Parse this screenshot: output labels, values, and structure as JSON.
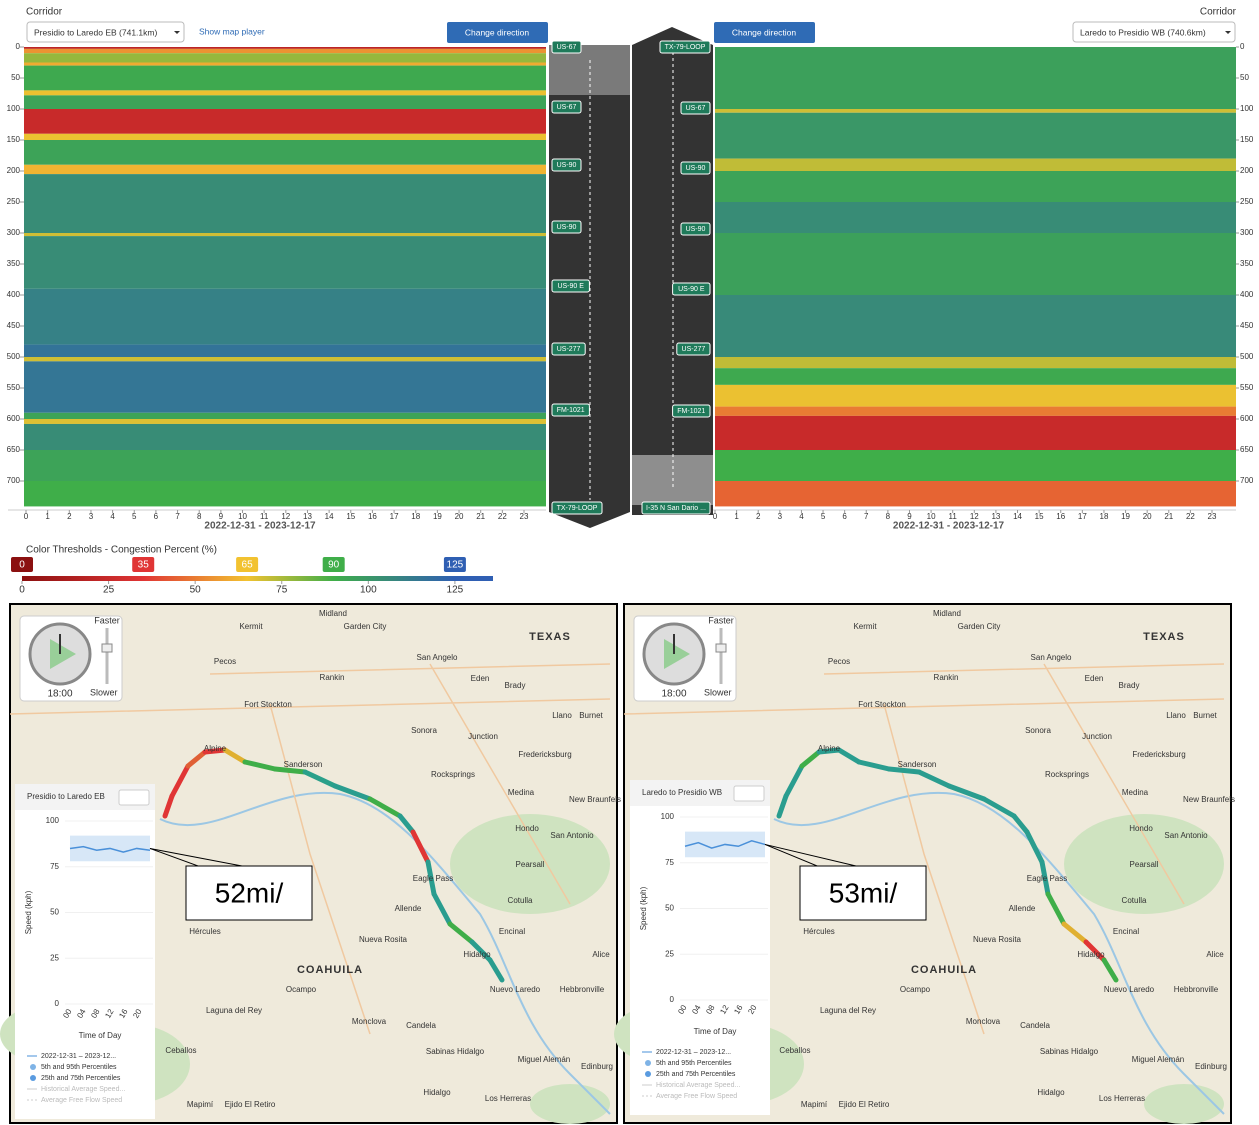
{
  "corridor_label": "Corridor",
  "heatmaps": [
    {
      "select": "Presidio to Laredo EB (741.1km)",
      "map_player": "Show map player",
      "change": "Change direction",
      "date_range": "2022-12-31 - 2023-12-17",
      "yticks": [
        0,
        50,
        100,
        150,
        200,
        250,
        300,
        350,
        400,
        450,
        500,
        550,
        600,
        650,
        700
      ],
      "xticks": [
        0,
        1,
        2,
        3,
        4,
        5,
        6,
        7,
        8,
        9,
        10,
        11,
        12,
        13,
        14,
        15,
        16,
        17,
        18,
        19,
        20,
        21,
        22,
        23
      ],
      "bands": [
        {
          "from": 0,
          "to": 3,
          "pct": 20
        },
        {
          "from": 3,
          "to": 10,
          "pct": 55
        },
        {
          "from": 10,
          "to": 25,
          "pct": 78
        },
        {
          "from": 25,
          "to": 30,
          "pct": 60
        },
        {
          "from": 30,
          "to": 70,
          "pct": 92
        },
        {
          "from": 70,
          "to": 78,
          "pct": 66
        },
        {
          "from": 78,
          "to": 100,
          "pct": 95
        },
        {
          "from": 100,
          "to": 140,
          "pct": 25
        },
        {
          "from": 140,
          "to": 150,
          "pct": 66
        },
        {
          "from": 150,
          "to": 190,
          "pct": 95
        },
        {
          "from": 190,
          "to": 205,
          "pct": 62
        },
        {
          "from": 205,
          "to": 300,
          "pct": 105
        },
        {
          "from": 300,
          "to": 305,
          "pct": 70
        },
        {
          "from": 305,
          "to": 390,
          "pct": 105
        },
        {
          "from": 390,
          "to": 480,
          "pct": 110
        },
        {
          "from": 480,
          "to": 500,
          "pct": 116
        },
        {
          "from": 500,
          "to": 507,
          "pct": 70
        },
        {
          "from": 507,
          "to": 590,
          "pct": 115
        },
        {
          "from": 590,
          "to": 600,
          "pct": 95
        },
        {
          "from": 600,
          "to": 608,
          "pct": 68
        },
        {
          "from": 608,
          "to": 650,
          "pct": 105
        },
        {
          "from": 650,
          "to": 700,
          "pct": 95
        },
        {
          "from": 700,
          "to": 741,
          "pct": 90
        }
      ]
    },
    {
      "select": "Laredo to Presidio WB (740.6km)",
      "change": "Change direction",
      "date_range": "2022-12-31 - 2023-12-17",
      "yticks": [
        0,
        50,
        100,
        150,
        200,
        250,
        300,
        350,
        400,
        450,
        500,
        550,
        600,
        650,
        700
      ],
      "xticks": [
        0,
        1,
        2,
        3,
        4,
        5,
        6,
        7,
        8,
        9,
        10,
        11,
        12,
        13,
        14,
        15,
        16,
        17,
        18,
        19,
        20,
        21,
        22,
        23
      ],
      "bands": [
        {
          "from": 0,
          "to": 100,
          "pct": 96
        },
        {
          "from": 100,
          "to": 106,
          "pct": 70
        },
        {
          "from": 106,
          "to": 180,
          "pct": 100
        },
        {
          "from": 180,
          "to": 200,
          "pct": 72
        },
        {
          "from": 200,
          "to": 250,
          "pct": 95
        },
        {
          "from": 250,
          "to": 300,
          "pct": 105
        },
        {
          "from": 300,
          "to": 400,
          "pct": 96
        },
        {
          "from": 400,
          "to": 500,
          "pct": 106
        },
        {
          "from": 500,
          "to": 518,
          "pct": 72
        },
        {
          "from": 518,
          "to": 545,
          "pct": 92
        },
        {
          "from": 545,
          "to": 580,
          "pct": 66
        },
        {
          "from": 580,
          "to": 595,
          "pct": 50
        },
        {
          "from": 595,
          "to": 650,
          "pct": 25
        },
        {
          "from": 650,
          "to": 700,
          "pct": 90
        },
        {
          "from": 700,
          "to": 741,
          "pct": 45
        }
      ]
    }
  ],
  "road": {
    "left_markers": [
      "US-67",
      "US-67",
      "US-90",
      "US-90",
      "US-90 E",
      "US-277",
      "FM-1021",
      "TX-79-LOOP"
    ],
    "right_markers": [
      "TX-79-LOOP",
      "US-67",
      "US-90",
      "US-90",
      "US-90 E",
      "US-277",
      "FM-1021",
      "I-35 N San Dario ..."
    ]
  },
  "thresholds": {
    "title": "Color Thresholds - Congestion Percent (%)",
    "markers": [
      {
        "value": 0,
        "color": "#8b1010"
      },
      {
        "value": 35,
        "color": "#e03535"
      },
      {
        "value": 65,
        "color": "#f2c230"
      },
      {
        "value": 90,
        "color": "#3fae49"
      },
      {
        "value": 125,
        "color": "#2f5fb3"
      }
    ],
    "ticks": [
      0,
      25,
      50,
      75,
      100,
      125
    ],
    "lim": [
      0,
      136
    ]
  },
  "maps": [
    {
      "clock_time": "18:00",
      "faster": "Faster",
      "slower": "Slower",
      "panel_title": "Presidio to Laredo EB",
      "callout": "52mi/",
      "y_label": "Speed (kph)",
      "x_label": "Time of Day",
      "yticks": [
        0,
        25,
        50,
        75,
        100
      ],
      "xticks": [
        "00",
        "04",
        "08",
        "12",
        "16",
        "20"
      ],
      "speed": [
        85,
        86,
        84,
        85,
        83,
        85,
        84
      ],
      "legend": [
        "2022-12-31 – 2023-12...",
        "5th and 95th Percentiles",
        "25th and 75th Percentiles",
        "Historical Average Speed...",
        "Average Free Flow Speed"
      ]
    },
    {
      "clock_time": "18:00",
      "faster": "Faster",
      "slower": "Slower",
      "panel_title": "Laredo to Presidio WB",
      "callout": "53mi/",
      "y_label": "Speed (kph)",
      "x_label": "Time of Day",
      "yticks": [
        0,
        25,
        50,
        75,
        100
      ],
      "xticks": [
        "00",
        "04",
        "08",
        "12",
        "16",
        "20"
      ],
      "speed": [
        84,
        86,
        83,
        85,
        84,
        87,
        85
      ],
      "legend": [
        "2022-12-31 – 2023-12...",
        "5th and 95th Percentiles",
        "25th and 75th Percentiles",
        "Historical Average Speed...",
        "Average Free Flow Speed"
      ]
    }
  ],
  "places": [
    "Midland",
    "Kermit",
    "Garden City",
    "TEXAS",
    "Pecos",
    "San Angelo",
    "Rankin",
    "Eden",
    "Brady",
    "Fort Stockton",
    "Llano",
    "Burnet",
    "Sanderson",
    "Alpine",
    "Junction",
    "Sonora",
    "Fredericksburg",
    "Rocksprings",
    "Medina",
    "New Braunfels",
    "Hondo",
    "San Antonio",
    "Pearsall",
    "Eagle Pass",
    "Cotulla",
    "Allende",
    "Encinal",
    "Hércules",
    "Nueva Rosita",
    "Hidalgo",
    "Alice",
    "COAHUILA",
    "Nuevo Laredo",
    "Hebbronville",
    "Ocampo",
    "Laguna del Rey",
    "Monclova",
    "Candela",
    "Ceballos",
    "Sabinas Hidalgo",
    "Miguel Alemán",
    "Edinburg",
    "Hidalgo",
    "Los Herreras",
    "Mapimí",
    "Ejido El Retiro"
  ]
}
